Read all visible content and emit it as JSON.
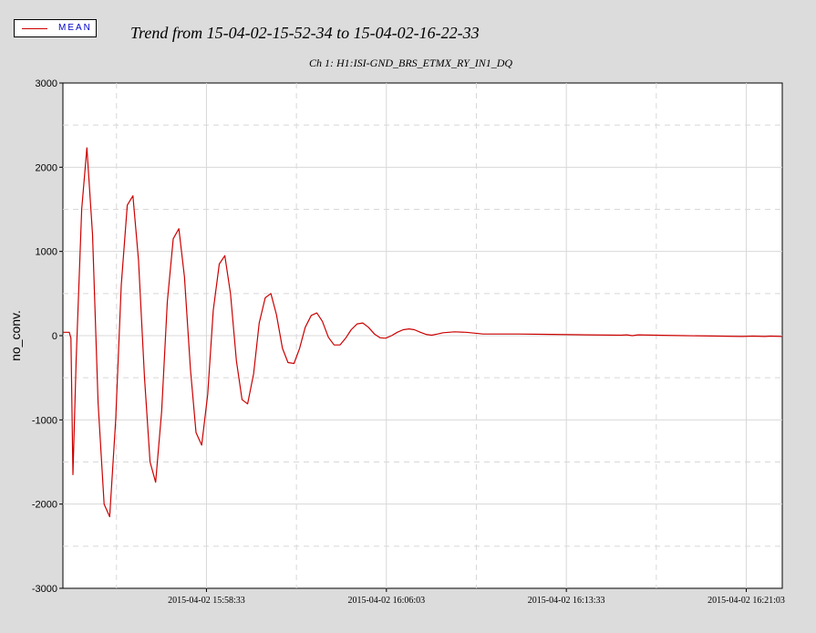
{
  "legend": {
    "label": "MEAN",
    "line_color": "#cc0000",
    "label_color": "#0000cc"
  },
  "chart_data": {
    "type": "line",
    "title": "Trend from 15-04-02-15-52-34 to 15-04-02-16-22-33",
    "subtitle": "Ch 1: H1:ISI-GND_BRS_ETMX_RY_IN1_DQ",
    "xlabel": "",
    "ylabel": "no_conv.",
    "ylim": [
      -3000,
      3000
    ],
    "yticks": [
      -3000,
      -2000,
      -1000,
      0,
      1000,
      2000,
      3000
    ],
    "ytick_labels": [
      "-3000",
      "-2000",
      "-1000",
      "0",
      "1000",
      "2000",
      "3000"
    ],
    "xlim": [
      "2015-04-02 15:52:34",
      "2015-04-02 16:22:33"
    ],
    "xticks": [
      "2015-04-02 15:58:33",
      "2015-04-02 16:06:03",
      "2015-04-02 16:13:33",
      "2015-04-02 16:21:03"
    ],
    "grid": true,
    "legend_position": "top-left",
    "series": [
      {
        "name": "MEAN",
        "color": "#cc0000",
        "points": [
          [
            "2015-04-02 15:52:34",
            40
          ],
          [
            "2015-04-02 15:52:50",
            40
          ],
          [
            "2015-04-02 15:52:54",
            -30
          ],
          [
            "2015-04-02 15:52:59",
            -1650
          ],
          [
            "2015-04-02 15:53:07",
            -300
          ],
          [
            "2015-04-02 15:53:21",
            1500
          ],
          [
            "2015-04-02 15:53:34",
            2230
          ],
          [
            "2015-04-02 15:53:48",
            1200
          ],
          [
            "2015-04-02 15:54:02",
            -800
          ],
          [
            "2015-04-02 15:54:17",
            -2000
          ],
          [
            "2015-04-02 15:54:31",
            -2150
          ],
          [
            "2015-04-02 15:54:46",
            -1000
          ],
          [
            "2015-04-02 15:55:00",
            600
          ],
          [
            "2015-04-02 15:55:15",
            1550
          ],
          [
            "2015-04-02 15:55:29",
            1660
          ],
          [
            "2015-04-02 15:55:43",
            900
          ],
          [
            "2015-04-02 15:55:58",
            -500
          ],
          [
            "2015-04-02 15:56:12",
            -1500
          ],
          [
            "2015-04-02 15:56:26",
            -1740
          ],
          [
            "2015-04-02 15:56:41",
            -900
          ],
          [
            "2015-04-02 15:56:55",
            400
          ],
          [
            "2015-04-02 15:57:10",
            1150
          ],
          [
            "2015-04-02 15:57:24",
            1270
          ],
          [
            "2015-04-02 15:57:38",
            700
          ],
          [
            "2015-04-02 15:57:53",
            -400
          ],
          [
            "2015-04-02 15:58:07",
            -1150
          ],
          [
            "2015-04-02 15:58:21",
            -1300
          ],
          [
            "2015-04-02 15:58:36",
            -700
          ],
          [
            "2015-04-02 15:58:50",
            300
          ],
          [
            "2015-04-02 15:59:05",
            850
          ],
          [
            "2015-04-02 15:59:19",
            950
          ],
          [
            "2015-04-02 15:59:33",
            500
          ],
          [
            "2015-04-02 15:59:48",
            -300
          ],
          [
            "2015-04-02 16:00:02",
            -760
          ],
          [
            "2015-04-02 16:00:16",
            -810
          ],
          [
            "2015-04-02 16:00:31",
            -450
          ],
          [
            "2015-04-02 16:00:45",
            150
          ],
          [
            "2015-04-02 16:01:00",
            450
          ],
          [
            "2015-04-02 16:01:14",
            500
          ],
          [
            "2015-04-02 16:01:28",
            250
          ],
          [
            "2015-04-02 16:01:43",
            -150
          ],
          [
            "2015-04-02 16:01:57",
            -320
          ],
          [
            "2015-04-02 16:02:12",
            -330
          ],
          [
            "2015-04-02 16:02:26",
            -150
          ],
          [
            "2015-04-02 16:02:40",
            100
          ],
          [
            "2015-04-02 16:02:55",
            240
          ],
          [
            "2015-04-02 16:03:09",
            270
          ],
          [
            "2015-04-02 16:03:23",
            170
          ],
          [
            "2015-04-02 16:03:38",
            -20
          ],
          [
            "2015-04-02 16:03:52",
            -110
          ],
          [
            "2015-04-02 16:04:07",
            -110
          ],
          [
            "2015-04-02 16:04:21",
            -30
          ],
          [
            "2015-04-02 16:04:35",
            70
          ],
          [
            "2015-04-02 16:04:50",
            140
          ],
          [
            "2015-04-02 16:05:04",
            150
          ],
          [
            "2015-04-02 16:05:18",
            100
          ],
          [
            "2015-04-02 16:05:33",
            20
          ],
          [
            "2015-04-02 16:05:47",
            -25
          ],
          [
            "2015-04-02 16:06:01",
            -30
          ],
          [
            "2015-04-02 16:06:16",
            0
          ],
          [
            "2015-04-02 16:06:30",
            40
          ],
          [
            "2015-04-02 16:06:45",
            70
          ],
          [
            "2015-04-02 16:07:00",
            80
          ],
          [
            "2015-04-02 16:07:13",
            70
          ],
          [
            "2015-04-02 16:07:28",
            40
          ],
          [
            "2015-04-02 16:07:42",
            15
          ],
          [
            "2015-04-02 16:07:56",
            5
          ],
          [
            "2015-04-02 16:08:11",
            20
          ],
          [
            "2015-04-02 16:08:25",
            35
          ],
          [
            "2015-04-02 16:08:53",
            45
          ],
          [
            "2015-04-02 16:09:22",
            40
          ],
          [
            "2015-04-02 16:10:05",
            20
          ],
          [
            "2015-04-02 16:11:31",
            20
          ],
          [
            "2015-04-02 16:12:57",
            15
          ],
          [
            "2015-04-02 16:14:23",
            10
          ],
          [
            "2015-04-02 16:15:50",
            5
          ],
          [
            "2015-04-02 16:16:04",
            10
          ],
          [
            "2015-04-02 16:16:18",
            0
          ],
          [
            "2015-04-02 16:16:33",
            10
          ],
          [
            "2015-04-02 16:17:16",
            5
          ],
          [
            "2015-04-02 16:18:28",
            0
          ],
          [
            "2015-04-02 16:19:54",
            -5
          ],
          [
            "2015-04-02 16:20:52",
            -10
          ],
          [
            "2015-04-02 16:21:20",
            -5
          ],
          [
            "2015-04-02 16:21:49",
            -10
          ],
          [
            "2015-04-02 16:22:03",
            -5
          ],
          [
            "2015-04-02 16:22:33",
            -10
          ]
        ]
      }
    ]
  }
}
